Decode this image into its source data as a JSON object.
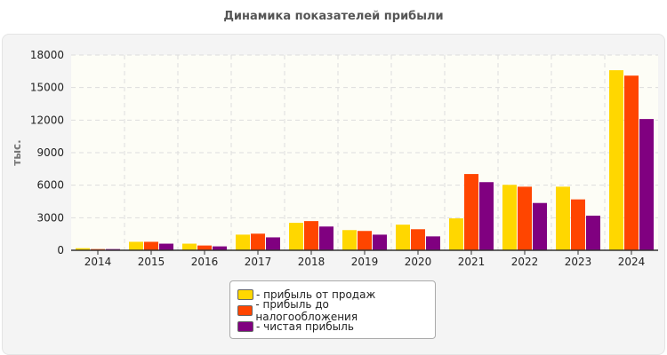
{
  "chart_data": {
    "type": "bar",
    "title": "Динамика показателей прибыли",
    "ylabel": "тыс.",
    "xlabel": "",
    "ylim": [
      0,
      18000
    ],
    "yticks": [
      0,
      3000,
      6000,
      9000,
      12000,
      15000,
      18000
    ],
    "grid": true,
    "legend_position": "bottom",
    "categories": [
      "2014",
      "2015",
      "2016",
      "2017",
      "2018",
      "2019",
      "2020",
      "2021",
      "2022",
      "2023",
      "2024"
    ],
    "series": [
      {
        "name": "- прибыль от продаж",
        "color": "#FFD700",
        "values": [
          190,
          780,
          610,
          1440,
          2530,
          1860,
          2360,
          2940,
          6030,
          5860,
          16600
        ]
      },
      {
        "name": "- прибыль до налогообложения",
        "color": "#FF4500",
        "values": [
          110,
          780,
          440,
          1530,
          2690,
          1780,
          1940,
          7030,
          5860,
          4690,
          16100
        ]
      },
      {
        "name": "- чистая прибыль",
        "color": "#800080",
        "values": [
          110,
          610,
          360,
          1190,
          2190,
          1440,
          1280,
          6280,
          4360,
          3190,
          12100
        ]
      }
    ]
  }
}
